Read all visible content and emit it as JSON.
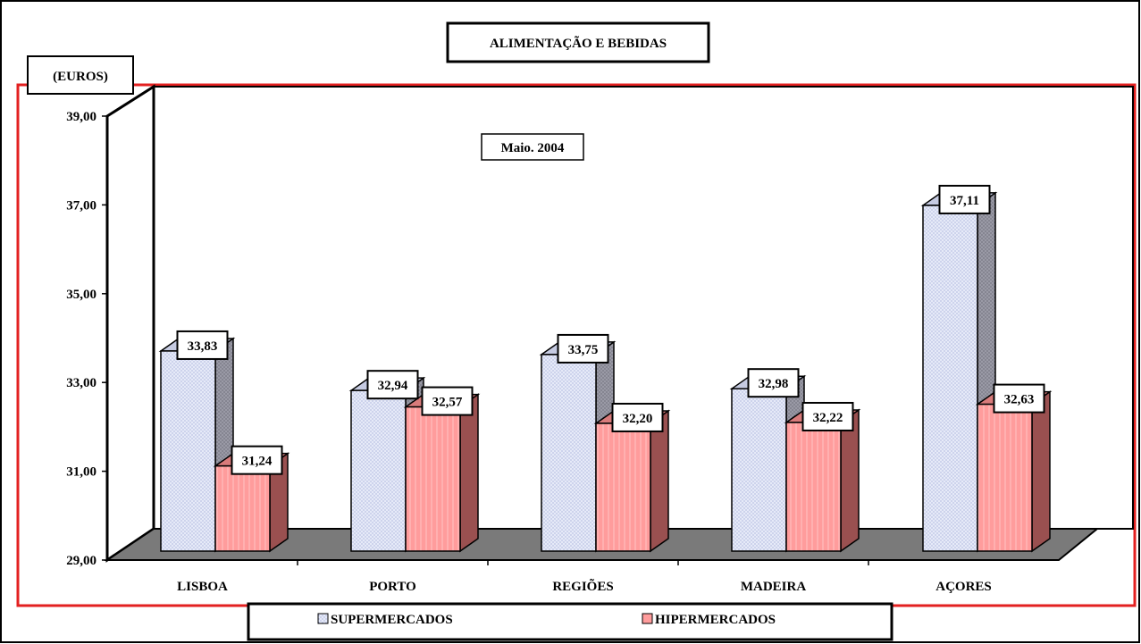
{
  "chart_data": {
    "type": "bar",
    "title": "ALIMENTAÇÃO E BEBIDAS",
    "subtitle": "Maio. 2004",
    "ylabel": "(EUROS)",
    "xlabel": "",
    "categories": [
      "LISBOA",
      "PORTO",
      "REGIÕES",
      "MADEIRA",
      "AÇORES"
    ],
    "series": [
      {
        "name": "SUPERMERCADOS",
        "values": [
          33.83,
          32.94,
          33.75,
          32.98,
          37.11
        ],
        "value_labels": [
          "33,83",
          "32,94",
          "33,75",
          "32,98",
          "37,11"
        ]
      },
      {
        "name": "HIPERMERCADOS",
        "values": [
          31.24,
          32.57,
          32.2,
          32.22,
          32.63
        ],
        "value_labels": [
          "31,24",
          "32,57",
          "32,20",
          "32,22",
          "32,63"
        ]
      }
    ],
    "ylim": [
      29,
      39
    ],
    "yticks": [
      29,
      31,
      33,
      35,
      37,
      39
    ],
    "ytick_labels": [
      "29,00",
      "31,00",
      "33,00",
      "35,00",
      "37,00",
      "39,00"
    ],
    "grid": false,
    "legend_position": "bottom",
    "colors": {
      "supermercados_front": "#dde3f4",
      "supermercados_side": "#8c8c9a",
      "hipermercados_front": "#ff9c9c",
      "hipermercados_side": "#9a5050",
      "floor": "#7a7a7a",
      "frame": "#e32020"
    }
  }
}
